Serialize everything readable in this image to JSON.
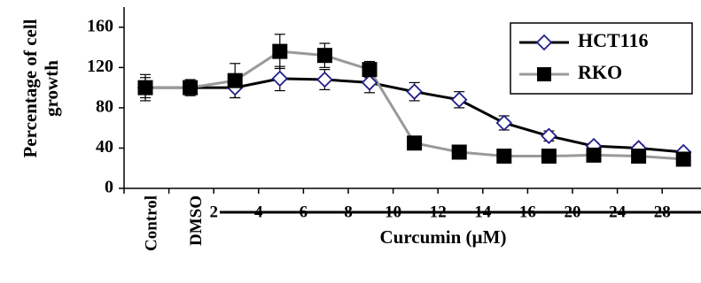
{
  "chart_data": {
    "type": "line",
    "ylabel": [
      "Percentage of cell",
      "growth"
    ],
    "xlabel": "Curcumin (µM)",
    "categories": [
      "Control",
      "DMSO",
      "2",
      "4",
      "6",
      "8",
      "10",
      "12",
      "14",
      "16",
      "20",
      "24",
      "28"
    ],
    "series": [
      {
        "name": "HCT116",
        "color": "#000000",
        "marker": "diamond",
        "marker_fill": "#ffffff",
        "marker_stroke": "#1f1f8a",
        "values": [
          100,
          100,
          100,
          109,
          108,
          105,
          96,
          88,
          65,
          52,
          42,
          40,
          36
        ],
        "errors": [
          10,
          6,
          10,
          12,
          10,
          10,
          9,
          8,
          7,
          5,
          3,
          3,
          2
        ]
      },
      {
        "name": "RKO",
        "color": "#999999",
        "marker": "square",
        "marker_fill": "#000000",
        "marker_stroke": "#000000",
        "values": [
          100,
          100,
          107,
          136,
          132,
          118,
          45,
          36,
          32,
          32,
          33,
          32,
          29
        ],
        "errors": [
          13,
          8,
          17,
          17,
          12,
          8,
          2,
          2,
          2,
          2,
          2,
          2,
          2
        ]
      }
    ],
    "ylim": [
      0,
      180
    ],
    "yticks": [
      0,
      40,
      80,
      120,
      160
    ],
    "grid": false,
    "legend": "upper right"
  }
}
